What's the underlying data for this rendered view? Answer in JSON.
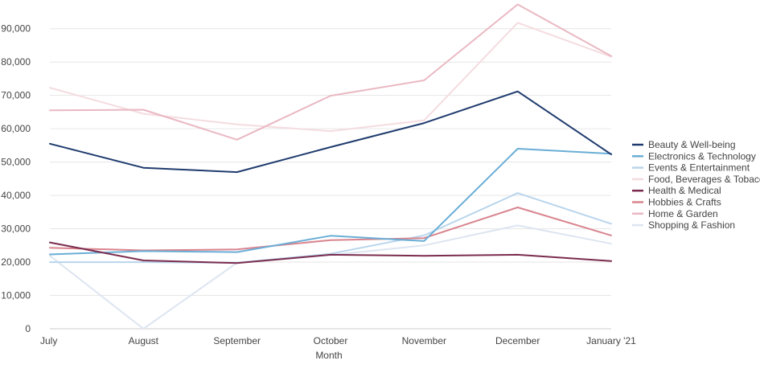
{
  "chart_data": {
    "type": "line",
    "categories": [
      "July",
      "August",
      "September",
      "October",
      "November",
      "December",
      "January '21"
    ],
    "xlabel": "Month",
    "ylabel": "",
    "ylim": [
      0,
      95000
    ],
    "yticks": [
      0,
      10000,
      20000,
      30000,
      40000,
      50000,
      60000,
      70000,
      80000,
      90000
    ],
    "ytick_labels": [
      "0",
      "10,000",
      "20,000",
      "30,000",
      "40,000",
      "50,000",
      "60,000",
      "70,000",
      "80,000",
      "90,000"
    ],
    "grid": true,
    "legend_position": "right",
    "series": [
      {
        "name": "Beauty & Well-being",
        "color": "#1f3b6e",
        "values": [
          55500,
          48300,
          47000,
          54500,
          61700,
          71200,
          52300
        ]
      },
      {
        "name": "Electronics & Technology",
        "color": "#6aaed6",
        "values": [
          22300,
          23300,
          23000,
          27900,
          26300,
          54000,
          52500
        ]
      },
      {
        "name": "Events & Entertainment",
        "color": "#b9d5ec",
        "values": [
          20000,
          20000,
          19800,
          22500,
          28000,
          40700,
          31500
        ]
      },
      {
        "name": "Food, Beverages & Tobacco",
        "color": "#f4dce0",
        "values": [
          72300,
          64500,
          61300,
          59300,
          62500,
          91800,
          81600
        ]
      },
      {
        "name": "Health & Medical",
        "color": "#7b2c4e",
        "values": [
          25900,
          20500,
          19700,
          22200,
          21900,
          22200,
          20300
        ]
      },
      {
        "name": "Hobbies & Crafts",
        "color": "#d9848e",
        "values": [
          24300,
          23500,
          23800,
          26600,
          27200,
          36400,
          28000
        ]
      },
      {
        "name": "Home & Garden",
        "color": "#eab8c2",
        "values": [
          65500,
          65700,
          56700,
          69900,
          74500,
          97300,
          81800
        ]
      },
      {
        "name": "Shopping & Fashion",
        "color": "#dde5f1",
        "values": [
          21900,
          0,
          19800,
          22100,
          25000,
          31000,
          25500
        ]
      }
    ]
  }
}
